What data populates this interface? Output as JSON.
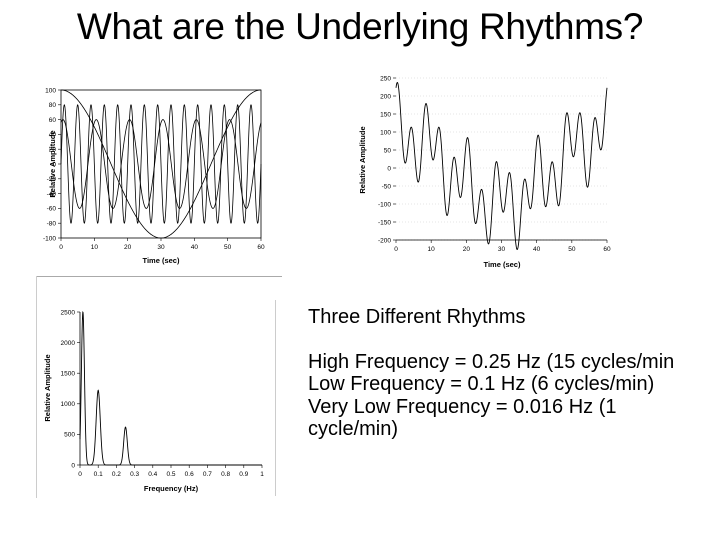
{
  "slide": {
    "title": "What are the Underlying Rhythms?",
    "text": {
      "heading": "Three Different Rhythms",
      "items": [
        "High Frequency = 0.25 Hz (15 cycles/min",
        "Low Frequency = 0.1 Hz (6 cycles/min)",
        "Very Low Frequency = 0.016 Hz (1 cycle/min)"
      ]
    }
  },
  "chart_data": [
    {
      "type": "line",
      "title": "",
      "xlabel": "Time (sec)",
      "ylabel": "Relative Amplitude",
      "xlim": [
        0,
        60
      ],
      "ylim": [
        -100,
        100
      ],
      "xticks": [
        "0",
        "10",
        "20",
        "30",
        "40",
        "50",
        "60"
      ],
      "yticks": [
        "100",
        "80",
        "60",
        "40",
        "20",
        "0",
        "-20",
        "-40",
        "-60",
        "-80",
        "-100"
      ],
      "series": [
        {
          "frequency_hz": 0.25,
          "amplitude": 80
        },
        {
          "frequency_hz": 0.1,
          "amplitude": 60
        },
        {
          "frequency_hz": 0.016,
          "amplitude": 100
        }
      ]
    },
    {
      "type": "line",
      "title": "",
      "xlabel": "Time (sec)",
      "ylabel": "Relative Amplitude",
      "xlim": [
        0,
        60
      ],
      "ylim": [
        -200,
        250
      ],
      "xticks": [
        "0",
        "10",
        "20",
        "30",
        "40",
        "50",
        "60"
      ],
      "yticks": [
        "250",
        "200",
        "150",
        "100",
        "50",
        "0",
        "-50",
        "-100",
        "-150",
        "-200"
      ],
      "series": [
        {
          "components": "sum of 0.25 Hz, 0.1 Hz and 0.016 Hz waves"
        }
      ]
    },
    {
      "type": "line",
      "title": "",
      "xlabel": "Frequency (Hz)",
      "ylabel": "Relative Amplitude",
      "xlim": [
        0,
        1
      ],
      "ylim": [
        0,
        2500
      ],
      "xticks": [
        "0",
        "0.1",
        "0.2",
        "0.3",
        "0.4",
        "0.5",
        "0.6",
        "0.7",
        "0.8",
        "0.9",
        "1"
      ],
      "yticks": [
        "2500",
        "2000",
        "1500",
        "1000",
        "500",
        "0"
      ],
      "series": [
        {
          "peaks": [
            {
              "x": 0.016,
              "y": 2500
            },
            {
              "x": 0.1,
              "y": 1220
            },
            {
              "x": 0.25,
              "y": 620
            }
          ]
        }
      ]
    }
  ]
}
